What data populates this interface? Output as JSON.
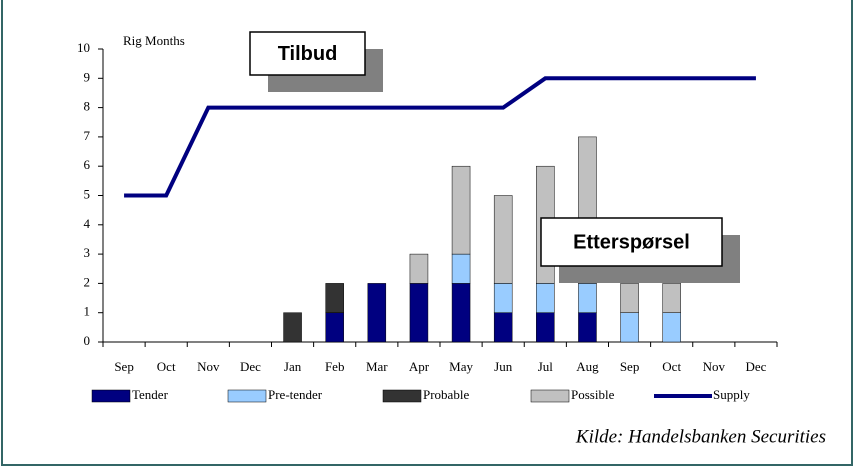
{
  "chart_data": {
    "type": "bar",
    "stacked": true,
    "y_axis_label": "Rig Months",
    "annotations": [
      "Tilbud",
      "Etterspørsel"
    ],
    "source": "Kilde: Handelsbanken Securities",
    "categories": [
      "Sep",
      "Oct",
      "Nov",
      "Dec",
      "Jan",
      "Feb",
      "Mar",
      "Apr",
      "May",
      "Jun",
      "Jul",
      "Aug",
      "Sep",
      "Oct",
      "Nov",
      "Dec"
    ],
    "series": [
      {
        "name": "Tender",
        "color": "#000080",
        "values": [
          0,
          0,
          0,
          0,
          0,
          1,
          2,
          2,
          2,
          1,
          1,
          1,
          0,
          0,
          0,
          0
        ]
      },
      {
        "name": "Pre-tender",
        "color": "#99ccff",
        "values": [
          0,
          0,
          0,
          0,
          0,
          0,
          0,
          0,
          1,
          1,
          1,
          1,
          1,
          1,
          0,
          0
        ]
      },
      {
        "name": "Probable",
        "color": "#333333",
        "values": [
          0,
          0,
          0,
          0,
          1,
          1,
          0,
          0,
          0,
          0,
          0,
          0,
          0,
          0,
          0,
          0
        ]
      },
      {
        "name": "Possible",
        "color": "#c0c0c0",
        "values": [
          0,
          0,
          0,
          0,
          0,
          0,
          0,
          1,
          3,
          3,
          4,
          5,
          1,
          1,
          0,
          0
        ]
      },
      {
        "name": "Supply",
        "color": "#000080",
        "type": "line",
        "values": [
          5,
          5,
          8,
          8,
          8,
          8,
          8,
          8,
          8,
          8,
          9,
          9,
          9,
          9,
          9,
          9
        ]
      }
    ],
    "ylim": [
      0,
      10
    ],
    "yticks": [
      0,
      1,
      2,
      3,
      4,
      5,
      6,
      7,
      8,
      9,
      10
    ]
  }
}
